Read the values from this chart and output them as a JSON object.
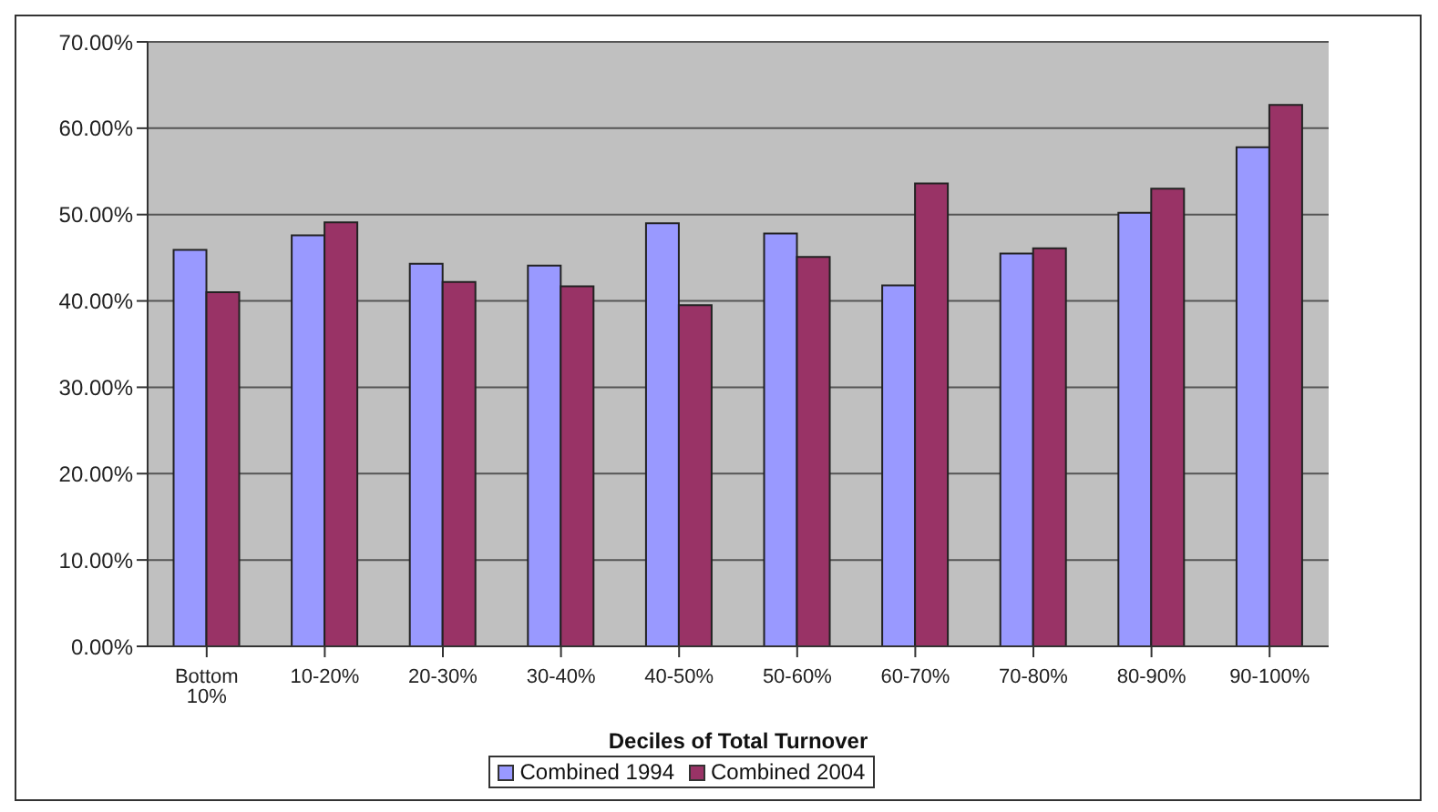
{
  "chart_data": {
    "type": "bar",
    "xlabel": "Deciles of Total Turnover",
    "categories": [
      "Bottom 10%",
      "10-20%",
      "20-30%",
      "30-40%",
      "40-50%",
      "50-60%",
      "60-70%",
      "70-80%",
      "80-90%",
      "90-100%"
    ],
    "series": [
      {
        "name": "Combined 1994",
        "color": "#9999ff",
        "values": [
          45.9,
          47.6,
          44.3,
          44.1,
          49.0,
          47.8,
          41.8,
          45.5,
          50.2,
          57.8
        ]
      },
      {
        "name": "Combined 2004",
        "color": "#993366",
        "values": [
          41.0,
          49.1,
          42.2,
          41.7,
          39.5,
          45.1,
          53.6,
          46.1,
          53.0,
          62.7
        ]
      }
    ],
    "ylim": [
      0,
      70
    ],
    "yticks": [
      {
        "value": 0,
        "label": "0.00%"
      },
      {
        "value": 10,
        "label": "10.00%"
      },
      {
        "value": 20,
        "label": "20.00%"
      },
      {
        "value": 30,
        "label": "30.00%"
      },
      {
        "value": 40,
        "label": "40.00%"
      },
      {
        "value": 50,
        "label": "50.00%"
      },
      {
        "value": 60,
        "label": "60.00%"
      },
      {
        "value": 70,
        "label": "70.00%"
      }
    ],
    "grid": "y",
    "legend": "bottom"
  }
}
